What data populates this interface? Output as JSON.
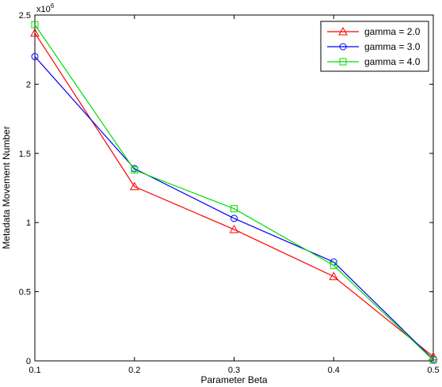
{
  "chart_data": {
    "type": "line",
    "title": "",
    "xlabel": "Parameter Beta",
    "ylabel": "Metadata Movement Number",
    "x": [
      0.1,
      0.2,
      0.3,
      0.4,
      0.5
    ],
    "xlim": [
      0.1,
      0.5
    ],
    "ylim": [
      0,
      2500000
    ],
    "xticks": [
      0.1,
      0.2,
      0.3,
      0.4,
      0.5
    ],
    "xtick_labels": [
      "0.1",
      "0.2",
      "0.3",
      "0.4",
      "0.5"
    ],
    "yticks": [
      0,
      500000,
      1000000,
      1500000,
      2000000,
      2500000
    ],
    "ytick_labels": [
      "0",
      "0.5",
      "1",
      "1.5",
      "2",
      "2.5"
    ],
    "y_multiplier_base": "x10",
    "y_multiplier_exp": "6",
    "grid": false,
    "legend_position": "top-right",
    "series": [
      {
        "name": "gamma = 2.0",
        "color": "#ff0000",
        "marker": "triangle",
        "values": [
          2370000,
          1260000,
          950000,
          610000,
          30000
        ]
      },
      {
        "name": "gamma = 3.0",
        "color": "#0000ff",
        "marker": "circle",
        "values": [
          2200000,
          1390000,
          1030000,
          715000,
          10000
        ]
      },
      {
        "name": "gamma = 4.0",
        "color": "#00dd00",
        "marker": "square",
        "values": [
          2430000,
          1380000,
          1100000,
          690000,
          5000
        ]
      }
    ]
  }
}
